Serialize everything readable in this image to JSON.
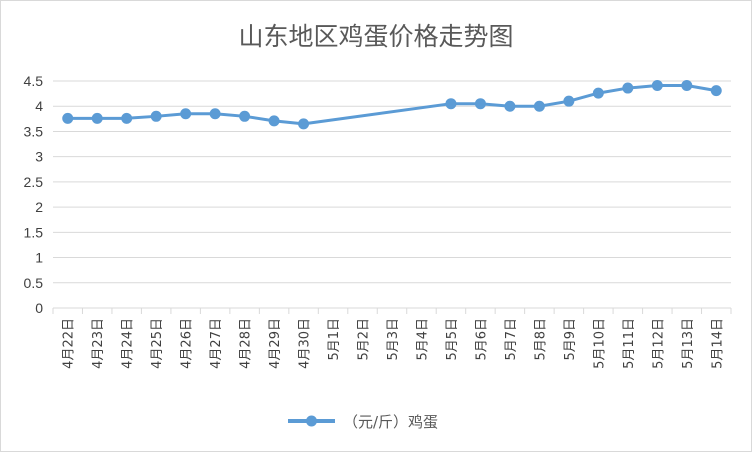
{
  "chart_data": {
    "type": "line",
    "title": "山东地区鸡蛋价格走势图",
    "xlabel": "",
    "ylabel": "",
    "ylim": [
      0,
      4.5
    ],
    "yticks": [
      "0",
      "0.5",
      "1",
      "1.5",
      "2",
      "2.5",
      "3",
      "3.5",
      "4",
      "4.5"
    ],
    "grid": true,
    "legend_position": "bottom",
    "categories": [
      "4月22日",
      "4月23日",
      "4月24日",
      "4月25日",
      "4月26日",
      "4月27日",
      "4月28日",
      "4月29日",
      "4月30日",
      "5月1日",
      "5月2日",
      "5月3日",
      "5月4日",
      "5月5日",
      "5月6日",
      "5月7日",
      "5月8日",
      "5月9日",
      "5月10日",
      "5月11日",
      "5月12日",
      "5月13日",
      "5月14日"
    ],
    "series": [
      {
        "name": "（元/斤）鸡蛋",
        "color": "#5b9bd5",
        "values": [
          3.76,
          3.76,
          3.76,
          3.8,
          3.85,
          3.85,
          3.8,
          3.71,
          3.65,
          null,
          null,
          null,
          null,
          4.05,
          4.05,
          4.0,
          4.0,
          4.1,
          4.26,
          4.36,
          4.41,
          4.41,
          4.31
        ]
      }
    ]
  }
}
